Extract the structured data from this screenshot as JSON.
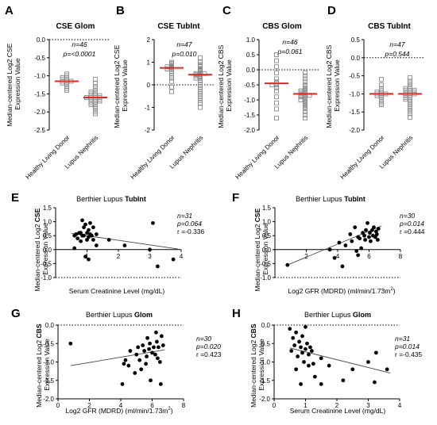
{
  "figure": {
    "panels": {
      "A": {
        "letter": "A",
        "title": "CSE Glom",
        "ylabel": "Median-centered Log2 CSE\nExpression Value",
        "stat_n": "n=46",
        "stat_p": "p=<0.0001"
      },
      "B": {
        "letter": "B",
        "title": "CSE TubInt",
        "ylabel": "Median-centered Log2 CSE\nExpression Value",
        "stat_n": "n=47",
        "stat_p": "p=0.010"
      },
      "C": {
        "letter": "C",
        "title": "CBS Glom",
        "ylabel": "Median-centered Log2 CBS\nExpression Value",
        "stat_n": "n=46",
        "stat_p": "p=0.061"
      },
      "D": {
        "letter": "D",
        "title": "CBS TubInt",
        "ylabel": "Median-centered Log2 CBS\nExpression Value",
        "stat_n": "n=47",
        "stat_p": "p=0.544"
      },
      "E": {
        "letter": "E",
        "title_prefix": "Berthier Lupus ",
        "title_bold": "TubInt",
        "ylabel_prefix": "Median-centered Log2 ",
        "ylabel_bold": "CSE",
        "ylabel2": "Expression Value",
        "xlabel": "Serum Creatinine Level (mg/dL)",
        "stat_n": "n=31",
        "stat_p": "p=0.064",
        "stat_r": "r =-0.336"
      },
      "F": {
        "letter": "F",
        "title_prefix": "Berthier Lupus ",
        "title_bold": "TubInt",
        "ylabel_prefix": "Median-centered Log2 ",
        "ylabel_bold": "CSE",
        "ylabel2": "Expression Value",
        "xlabel": "Log2 GFR (MDRD) (ml/min/1.73m",
        "stat_n": "n=30",
        "stat_p": "p=0.014",
        "stat_r": "r =0.444"
      },
      "G": {
        "letter": "G",
        "title_prefix": "Berthier Lupus ",
        "title_bold": "Glom",
        "ylabel_prefix": "Median-centered Log2 ",
        "ylabel_bold": "CBS",
        "ylabel2": "Expression Value",
        "xlabel": "Log2 GFR (MDRD) (ml/min/1.73m",
        "stat_n": "n=30",
        "stat_p": "p=0.020",
        "stat_r": "r =0.423"
      },
      "H": {
        "letter": "H",
        "title_prefix": "Berthier Lupus ",
        "title_bold": "Glom",
        "ylabel_prefix": "Median-centered Log2 ",
        "ylabel_bold": "CBS",
        "ylabel2": "Expression Value",
        "xlabel": "Serum Creatinine Level (mg/dL)",
        "stat_n": "n=31",
        "stat_p": "p=0.014",
        "stat_r": "r =-0.435"
      }
    }
  },
  "colors": {
    "median_line": "#e8261c",
    "marker": "#000000",
    "open_marker": "#8a8a8a"
  },
  "chart_data": [
    {
      "panel": "A",
      "type": "scatter",
      "subtype": "dot-plot",
      "categories": [
        "Healthy Living Donor",
        "Lupus Nephritis"
      ],
      "ylim": [
        -2.5,
        0.0
      ],
      "yticks": [
        "0.0",
        "-0.5",
        "-1.0",
        "-1.5",
        "-2.0",
        "-2.5"
      ],
      "series": [
        {
          "values": [
            -0.95,
            -1.0,
            -1.05,
            -1.05,
            -1.1,
            -1.1,
            -1.15,
            -1.15,
            -1.15,
            -1.2,
            -1.2,
            -1.25,
            -1.3,
            -1.35,
            -1.4
          ]
        },
        {
          "values": [
            -1.1,
            -1.2,
            -1.3,
            -1.35,
            -1.4,
            -1.45,
            -1.45,
            -1.5,
            -1.5,
            -1.55,
            -1.55,
            -1.55,
            -1.6,
            -1.6,
            -1.6,
            -1.6,
            -1.65,
            -1.65,
            -1.65,
            -1.7,
            -1.7,
            -1.7,
            -1.75,
            -1.75,
            -1.8,
            -1.8,
            -1.85,
            -1.9,
            -1.95,
            -2.0,
            -2.05
          ]
        }
      ],
      "medians": [
        -1.15,
        -1.6
      ]
    },
    {
      "panel": "B",
      "type": "scatter",
      "subtype": "dot-plot",
      "categories": [
        "Healthy Living Donor",
        "Lupus Nephritis"
      ],
      "ylim": [
        -2,
        2
      ],
      "yticks": [
        "2",
        "1",
        "0",
        "-1",
        "-2"
      ],
      "series": [
        {
          "values": [
            1.0,
            0.95,
            0.9,
            0.85,
            0.8,
            0.8,
            0.75,
            0.7,
            0.7,
            0.6,
            0.5,
            0.4,
            0.3,
            0.15,
            -0.1,
            -0.3
          ]
        },
        {
          "values": [
            1.2,
            1.0,
            0.9,
            0.85,
            0.8,
            0.7,
            0.65,
            0.6,
            0.55,
            0.5,
            0.5,
            0.5,
            0.45,
            0.45,
            0.4,
            0.4,
            0.35,
            0.3,
            0.3,
            0.2,
            0.1,
            0.0,
            -0.1,
            -0.2,
            -0.3,
            -0.4,
            -0.5,
            -0.6,
            -0.7,
            -0.8,
            -1.0
          ]
        }
      ],
      "medians": [
        0.75,
        0.45
      ]
    },
    {
      "panel": "C",
      "type": "scatter",
      "subtype": "dot-plot",
      "categories": [
        "Healthy Living Donor",
        "Lupus Nephritis"
      ],
      "ylim": [
        -2.0,
        1.0
      ],
      "yticks": [
        "1.0",
        "0.5",
        "0.0",
        "-0.5",
        "-1.0",
        "-1.5",
        "-2.0"
      ],
      "series": [
        {
          "values": [
            0.5,
            0.3,
            0.1,
            -0.1,
            -0.3,
            -0.4,
            -0.45,
            -0.5,
            -0.5,
            -0.6,
            -0.7,
            -0.9,
            -1.1,
            -1.3,
            -1.6
          ]
        },
        {
          "values": [
            -0.1,
            -0.2,
            -0.3,
            -0.4,
            -0.5,
            -0.55,
            -0.6,
            -0.65,
            -0.7,
            -0.7,
            -0.75,
            -0.75,
            -0.8,
            -0.8,
            -0.85,
            -0.85,
            -0.85,
            -0.9,
            -0.9,
            -0.95,
            -1.0,
            -1.0,
            -1.05,
            -1.1,
            -1.15,
            -1.2,
            -1.25,
            -1.3,
            -1.4,
            -1.5,
            -1.6
          ]
        }
      ],
      "medians": [
        -0.45,
        -0.8
      ]
    },
    {
      "panel": "D",
      "type": "scatter",
      "subtype": "dot-plot",
      "categories": [
        "Healthy Living Donor",
        "Lupus Nephritis"
      ],
      "ylim": [
        -2.0,
        0.5
      ],
      "yticks": [
        "0.5",
        "0.0",
        "-0.5",
        "-1.0",
        "-1.5",
        "-2.0"
      ],
      "series": [
        {
          "values": [
            -0.6,
            -0.75,
            -0.85,
            -0.9,
            -0.95,
            -0.95,
            -1.0,
            -1.0,
            -1.0,
            -1.05,
            -1.05,
            -1.1,
            -1.15,
            -1.2,
            -1.25,
            -1.3
          ]
        },
        {
          "values": [
            -0.55,
            -0.65,
            -0.7,
            -0.75,
            -0.8,
            -0.85,
            -0.85,
            -0.9,
            -0.9,
            -0.9,
            -0.95,
            -0.95,
            -0.95,
            -1.0,
            -1.0,
            -1.0,
            -1.05,
            -1.05,
            -1.1,
            -1.1,
            -1.15,
            -1.15,
            -1.2,
            -1.25,
            -1.3,
            -1.35,
            -1.4,
            -1.45,
            -1.5,
            -1.55,
            -1.65
          ]
        }
      ],
      "medians": [
        -1.0,
        -1.0
      ]
    },
    {
      "panel": "E",
      "type": "scatter",
      "xlim": [
        0,
        4
      ],
      "ylim": [
        -1.0,
        1.5
      ],
      "xticks": [
        1,
        2,
        3,
        4
      ],
      "yticks": [
        "1.5",
        "1.0",
        "0.5",
        "0.0",
        "-0.5",
        "-1.0"
      ],
      "points": [
        [
          0.6,
          0.5
        ],
        [
          0.65,
          0.55
        ],
        [
          0.7,
          0.4
        ],
        [
          0.75,
          0.6
        ],
        [
          0.8,
          0.3
        ],
        [
          0.8,
          0.6
        ],
        [
          0.85,
          0.5
        ],
        [
          0.85,
          1.05
        ],
        [
          0.9,
          0.8
        ],
        [
          0.9,
          0.5
        ],
        [
          0.95,
          0.9
        ],
        [
          1.0,
          0.6
        ],
        [
          1.0,
          0.35
        ],
        [
          1.05,
          0.7
        ],
        [
          1.05,
          0.45
        ],
        [
          1.1,
          0.55
        ],
        [
          1.1,
          0.95
        ],
        [
          1.15,
          0.5
        ],
        [
          1.2,
          0.8
        ],
        [
          1.2,
          0.35
        ],
        [
          1.3,
          0.55
        ],
        [
          0.6,
          0.05
        ],
        [
          0.95,
          -0.25
        ],
        [
          1.05,
          -0.35
        ],
        [
          1.3,
          0.15
        ],
        [
          1.7,
          0.35
        ],
        [
          2.2,
          0.15
        ],
        [
          3.0,
          0.0
        ],
        [
          3.1,
          0.95
        ],
        [
          3.25,
          -0.6
        ],
        [
          3.75,
          -0.35
        ]
      ],
      "fit": [
        [
          0.5,
          0.58
        ],
        [
          3.9,
          0.02
        ]
      ]
    },
    {
      "panel": "F",
      "type": "scatter",
      "xlim": [
        0,
        8
      ],
      "ylim": [
        -1.0,
        1.5
      ],
      "xticks": [
        2,
        4,
        6,
        8
      ],
      "yticks": [
        "1.5",
        "1.0",
        "0.5",
        "0.0",
        "-0.5",
        "-1.0"
      ],
      "points": [
        [
          0.8,
          -0.55
        ],
        [
          3.5,
          0.0
        ],
        [
          3.8,
          -0.3
        ],
        [
          4.1,
          0.25
        ],
        [
          4.3,
          -0.6
        ],
        [
          4.5,
          0.15
        ],
        [
          4.9,
          0.3
        ],
        [
          5.1,
          0.8
        ],
        [
          5.2,
          -0.05
        ],
        [
          5.3,
          0.45
        ],
        [
          5.4,
          0.4
        ],
        [
          5.5,
          0.05
        ],
        [
          5.6,
          0.6
        ],
        [
          5.7,
          0.5
        ],
        [
          5.75,
          0.35
        ],
        [
          5.8,
          0.7
        ],
        [
          5.9,
          0.95
        ],
        [
          6.0,
          0.45
        ],
        [
          6.05,
          0.6
        ],
        [
          6.1,
          0.3
        ],
        [
          6.2,
          0.7
        ],
        [
          6.25,
          0.5
        ],
        [
          6.3,
          0.8
        ],
        [
          6.4,
          0.45
        ],
        [
          6.45,
          0.65
        ],
        [
          6.5,
          0.55
        ],
        [
          6.55,
          0.35
        ],
        [
          6.6,
          0.75
        ],
        [
          5.3,
          -0.2
        ],
        [
          4.8,
          0.55
        ]
      ],
      "fit": [
        [
          0.8,
          -0.55
        ],
        [
          6.8,
          0.85
        ]
      ]
    },
    {
      "panel": "G",
      "type": "scatter",
      "xlim": [
        0,
        8
      ],
      "ylim": [
        -2.0,
        0.0
      ],
      "xticks": [
        0,
        2,
        4,
        6,
        8
      ],
      "yticks": [
        "0.0",
        "-0.5",
        "-1.0",
        "-1.5",
        "-2.0"
      ],
      "points": [
        [
          0.8,
          -0.5
        ],
        [
          4.1,
          -1.6
        ],
        [
          4.2,
          -1.05
        ],
        [
          4.3,
          -0.95
        ],
        [
          4.5,
          -1.1
        ],
        [
          4.6,
          -0.7
        ],
        [
          4.9,
          -1.3
        ],
        [
          5.0,
          -0.8
        ],
        [
          5.1,
          -0.6
        ],
        [
          5.2,
          -0.95
        ],
        [
          5.3,
          -1.2
        ],
        [
          5.4,
          -0.55
        ],
        [
          5.5,
          -0.7
        ],
        [
          5.6,
          -1.05
        ],
        [
          5.65,
          -0.85
        ],
        [
          5.7,
          -0.35
        ],
        [
          5.8,
          -0.65
        ],
        [
          5.85,
          -0.5
        ],
        [
          5.9,
          -1.5
        ],
        [
          6.0,
          -0.75
        ],
        [
          6.1,
          -0.6
        ],
        [
          6.2,
          -0.8
        ],
        [
          6.25,
          -0.2
        ],
        [
          6.3,
          -0.45
        ],
        [
          6.4,
          -0.6
        ],
        [
          6.5,
          -1.0
        ],
        [
          6.55,
          -1.6
        ],
        [
          6.6,
          -0.3
        ],
        [
          6.7,
          -0.55
        ],
        [
          6.35,
          -0.9
        ]
      ],
      "fit": [
        [
          0.8,
          -1.1
        ],
        [
          6.8,
          -0.67
        ]
      ]
    },
    {
      "panel": "H",
      "type": "scatter",
      "xlim": [
        0,
        4
      ],
      "ylim": [
        -2.0,
        0.0
      ],
      "xticks": [
        0,
        1,
        2,
        3,
        4
      ],
      "yticks": [
        "0.0",
        "-0.5",
        "-1.0",
        "-1.5",
        "-2.0"
      ],
      "points": [
        [
          0.5,
          -0.1
        ],
        [
          0.55,
          -0.7
        ],
        [
          0.6,
          -0.35
        ],
        [
          0.65,
          -0.55
        ],
        [
          0.7,
          -0.2
        ],
        [
          0.75,
          -0.85
        ],
        [
          0.8,
          -0.45
        ],
        [
          0.85,
          -0.6
        ],
        [
          0.9,
          -0.3
        ],
        [
          0.9,
          -0.75
        ],
        [
          0.95,
          -1.0
        ],
        [
          1.0,
          -0.65
        ],
        [
          1.0,
          -0.05
        ],
        [
          1.05,
          -0.5
        ],
        [
          1.1,
          -0.8
        ],
        [
          1.1,
          -1.1
        ],
        [
          1.15,
          -0.6
        ],
        [
          1.2,
          -0.7
        ],
        [
          1.25,
          -1.05
        ],
        [
          0.7,
          -1.2
        ],
        [
          0.85,
          -1.6
        ],
        [
          1.3,
          -1.4
        ],
        [
          1.5,
          -0.9
        ],
        [
          1.75,
          -1.1
        ],
        [
          2.2,
          -1.5
        ],
        [
          2.5,
          -1.2
        ],
        [
          3.0,
          -1.0
        ],
        [
          3.2,
          -1.55
        ],
        [
          3.25,
          -0.75
        ],
        [
          3.6,
          -1.2
        ],
        [
          1.5,
          -1.6
        ]
      ],
      "fit": [
        [
          0.5,
          -0.62
        ],
        [
          3.7,
          -1.3
        ]
      ]
    }
  ]
}
